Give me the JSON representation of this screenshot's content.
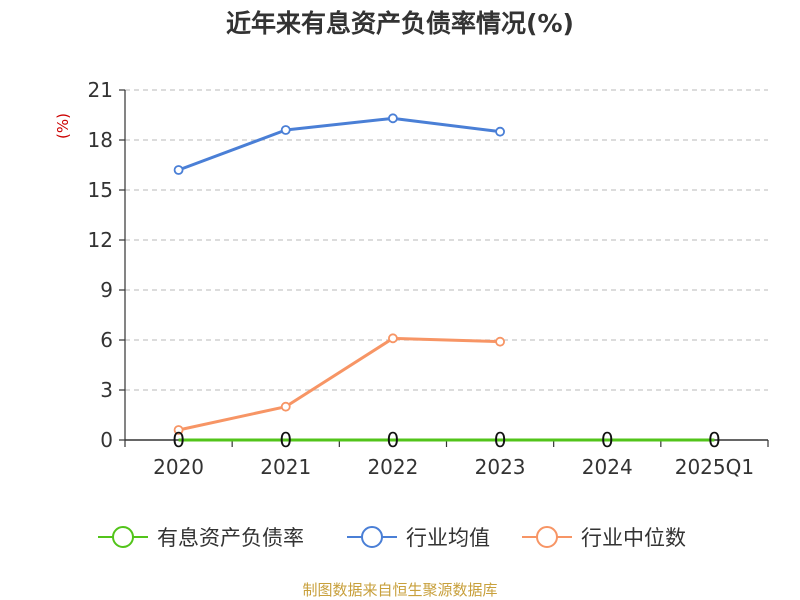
{
  "chart_data": {
    "type": "line",
    "title": "近年来有息资产负债率情况(%)",
    "ylabel": "(%)",
    "ylim": [
      0,
      21
    ],
    "yticks": [
      0,
      3,
      6,
      9,
      12,
      15,
      18,
      21
    ],
    "categories": [
      "2020",
      "2021",
      "2022",
      "2023",
      "2024",
      "2025Q1"
    ],
    "grid": true,
    "legend_position": "bottom",
    "series": [
      {
        "name": "有息资产负债率",
        "color": "#52c41a",
        "values": [
          0,
          0,
          0,
          0,
          0,
          0
        ],
        "point_labels": [
          "0",
          "0",
          "0",
          "0",
          "0",
          "0"
        ]
      },
      {
        "name": "行业均值",
        "color": "#4a7fd6",
        "values": [
          16.2,
          18.6,
          19.3,
          18.5,
          null,
          null
        ]
      },
      {
        "name": "行业中位数",
        "color": "#f79565",
        "values": [
          0.6,
          2.0,
          6.1,
          5.9,
          null,
          null
        ]
      }
    ]
  },
  "source": "制图数据来自恒生聚源数据库"
}
